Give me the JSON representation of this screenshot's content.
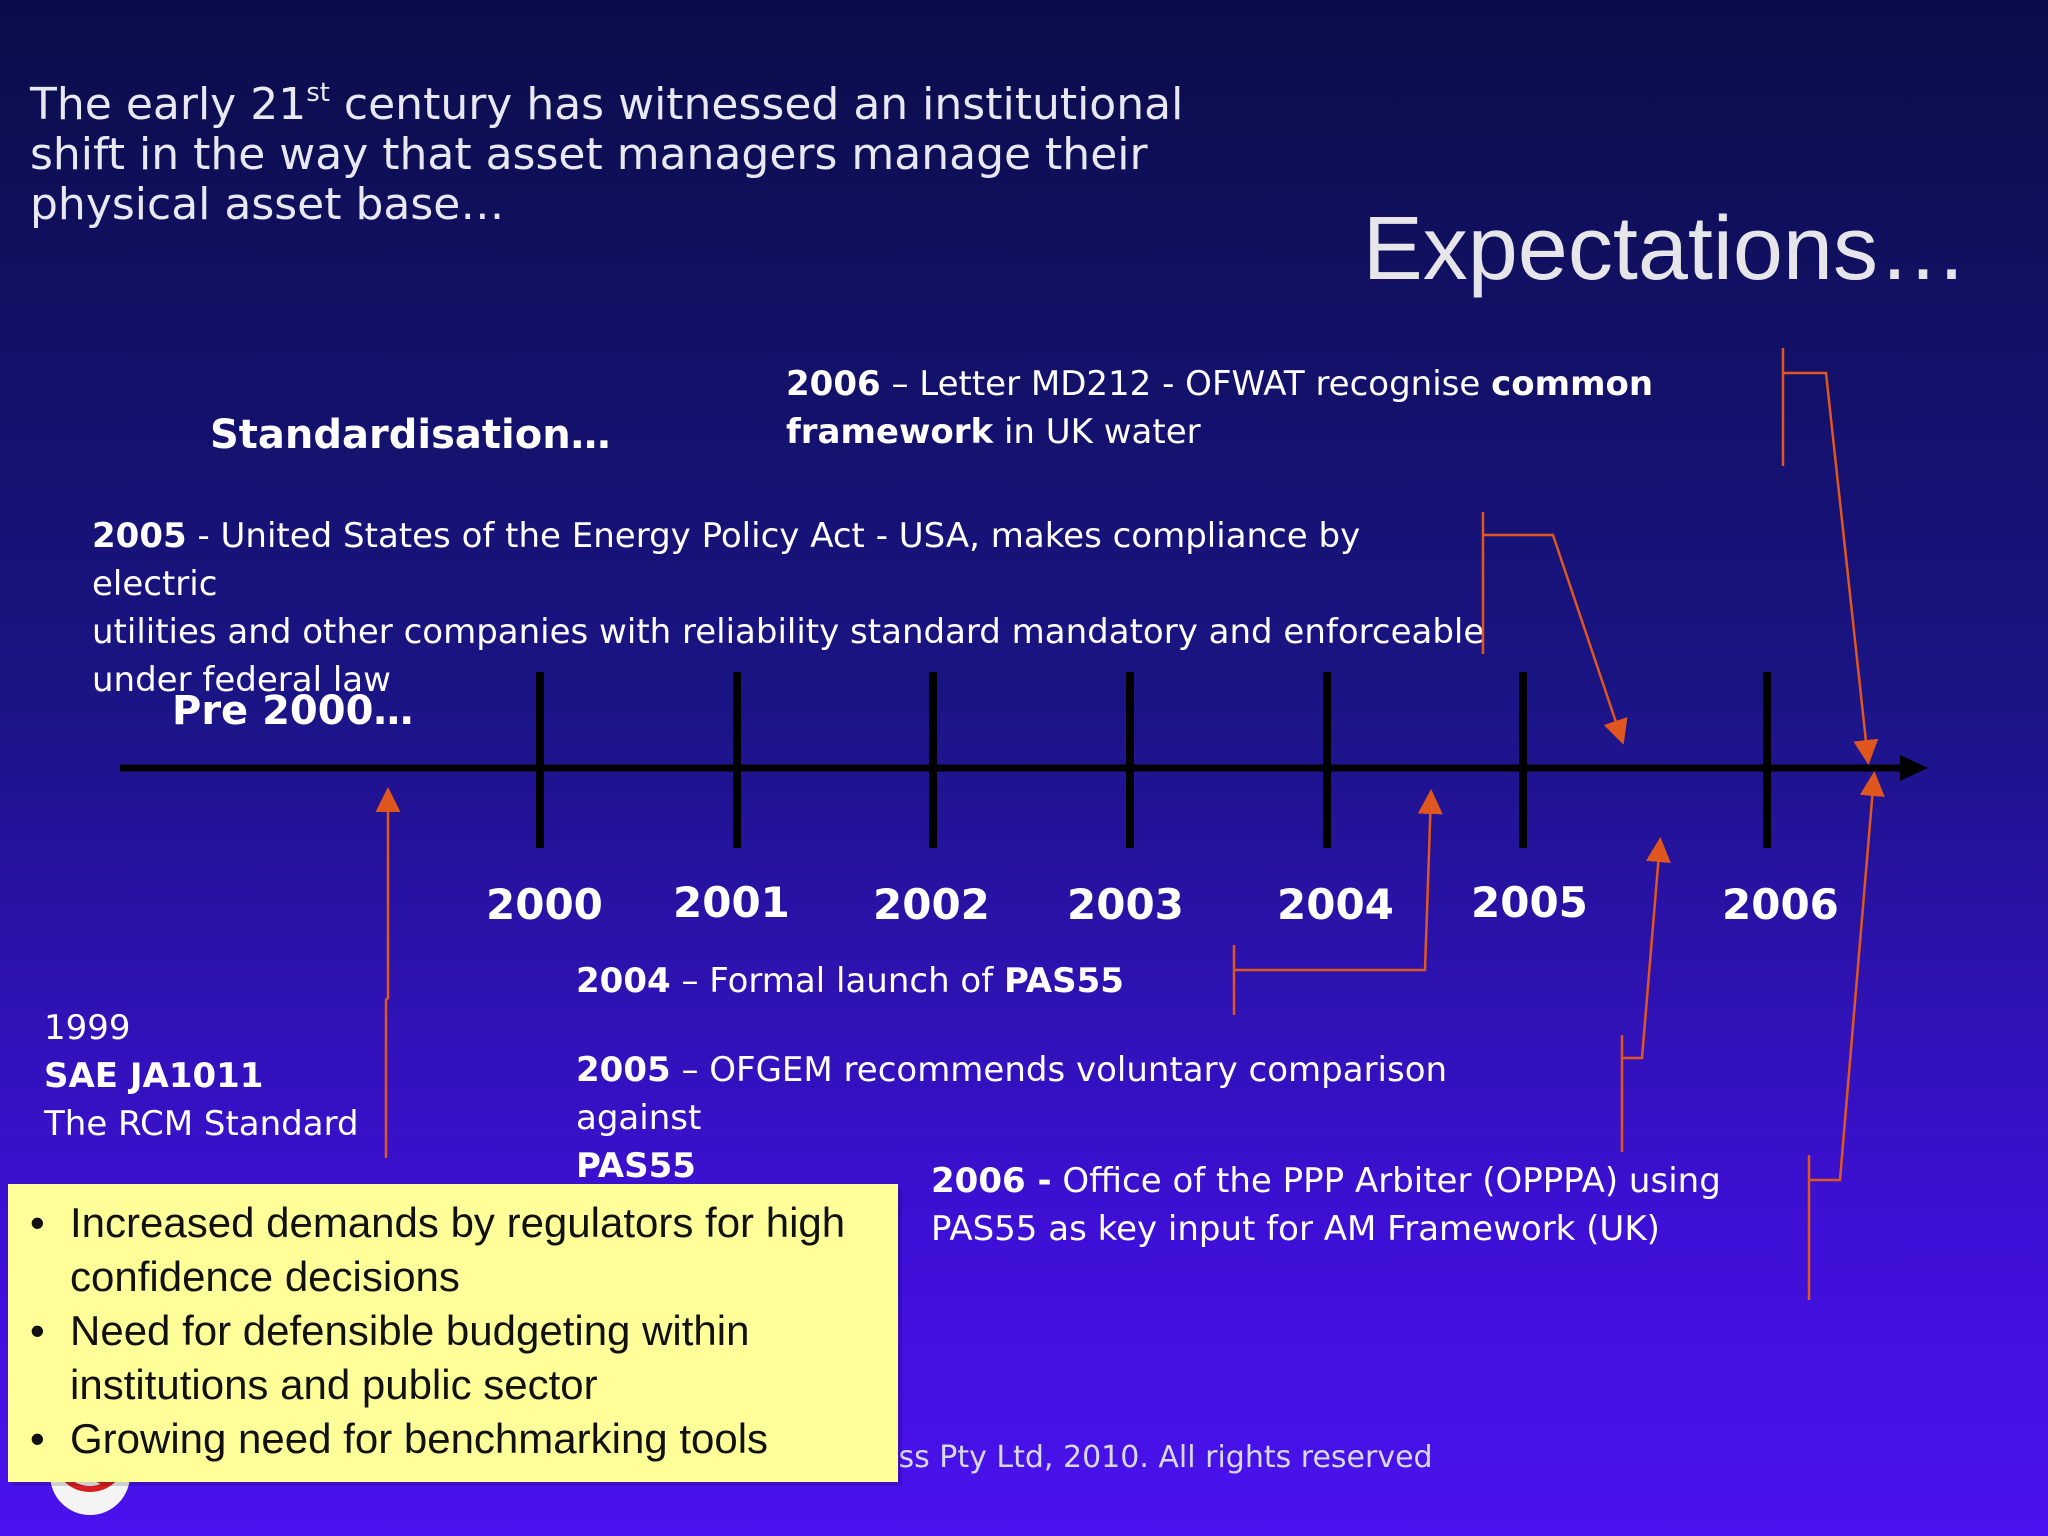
{
  "intro": {
    "line1_before": "The early 21",
    "line1_sup": "st",
    "line1_after": " century has witnessed an institutional",
    "line2": "shift in the way that asset managers manage their",
    "line3": "physical asset base…"
  },
  "title": "Expectations…",
  "headings": {
    "standardisation": "Standardisation…",
    "pre2000": "Pre 2000…"
  },
  "events": {
    "e2006_letter": {
      "year": "2006",
      "t1": " – Letter MD212 - OFWAT recognise ",
      "b1": "common",
      "b2": "framework",
      "t2": " in UK water"
    },
    "e2005_energy": {
      "year": "2005",
      "t1": " - United States of the Energy Policy Act - USA, makes compliance by electric",
      "t2": "utilities and other companies with reliability standard mandatory and enforceable",
      "t3": "under federal law"
    },
    "e1999": {
      "year": "1999",
      "name": "SAE JA1011",
      "desc": "The RCM Standard"
    },
    "e2004_pas": {
      "year": "2004",
      "t1": " – Formal launch of  ",
      "b1": "PAS55"
    },
    "e2005_ofgem": {
      "year": "2005",
      "t1": " – OFGEM recommends voluntary comparison against",
      "b1": "PAS55"
    },
    "e2006_opppa": {
      "year": "2006 -",
      "t1": " Office of the PPP Arbiter (OPPPA) using",
      "t2": "PAS55 as key input for AM Framework (UK)"
    }
  },
  "timeline": {
    "years": [
      "2000",
      "2001",
      "2002",
      "2003",
      "2004",
      "2005",
      "2006"
    ]
  },
  "callout": {
    "bullet": "•",
    "items": [
      "Increased demands by regulators for high confidence decisions",
      "Need for defensible budgeting within institutions and public sector",
      "Growing need for benchmarking tools"
    ]
  },
  "footer": {
    "copyright": "ess Pty  Ltd, 2010. All rights reserved"
  },
  "colors": {
    "background_top": "#0b0d4a",
    "background_bottom": "#4a12ee",
    "callout": "#ffff99",
    "arrow": "#e0561f",
    "axis": "#000000"
  }
}
